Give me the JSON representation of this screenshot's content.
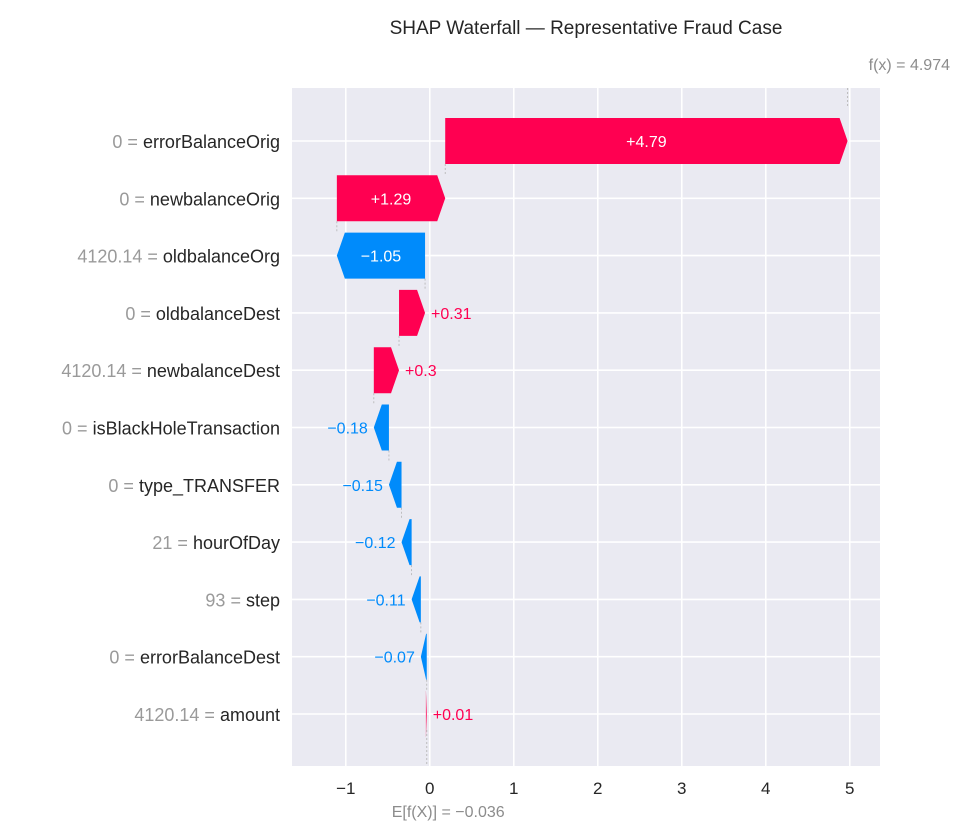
{
  "chart_data": {
    "type": "bar",
    "title": "SHAP Waterfall — Representative Fraud Case",
    "fx_label": "f(x) = 4.974",
    "fx_value": 4.974,
    "base_label": "E[f(X)] = −0.036",
    "base_value": -0.036,
    "xlim": [
      -1.64,
      5.36
    ],
    "xticks": [
      -1,
      0,
      1,
      2,
      3,
      4,
      5
    ],
    "xtick_labels": [
      "−1",
      "0",
      "1",
      "2",
      "3",
      "4",
      "5"
    ],
    "grid": true,
    "colors": {
      "positive": "#ff0051",
      "negative": "#008bfb",
      "background": "#eaeaf2"
    },
    "features": [
      {
        "value_text": "0",
        "name": "errorBalanceOrig",
        "contribution": 4.79,
        "label": "+4.79"
      },
      {
        "value_text": "0",
        "name": "newbalanceOrig",
        "contribution": 1.29,
        "label": "+1.29"
      },
      {
        "value_text": "4120.14",
        "name": "oldbalanceOrg",
        "contribution": -1.05,
        "label": "−1.05"
      },
      {
        "value_text": "0",
        "name": "oldbalanceDest",
        "contribution": 0.31,
        "label": "+0.31"
      },
      {
        "value_text": "4120.14",
        "name": "newbalanceDest",
        "contribution": 0.3,
        "label": "+0.3"
      },
      {
        "value_text": "0",
        "name": "isBlackHoleTransaction",
        "contribution": -0.18,
        "label": "−0.18"
      },
      {
        "value_text": "0",
        "name": "type_TRANSFER",
        "contribution": -0.15,
        "label": "−0.15"
      },
      {
        "value_text": "21",
        "name": "hourOfDay",
        "contribution": -0.12,
        "label": "−0.12"
      },
      {
        "value_text": "93",
        "name": "step",
        "contribution": -0.11,
        "label": "−0.11"
      },
      {
        "value_text": "0",
        "name": "errorBalanceDest",
        "contribution": -0.07,
        "label": "−0.07"
      },
      {
        "value_text": "4120.14",
        "name": "amount",
        "contribution": 0.01,
        "label": "+0.01"
      }
    ]
  }
}
